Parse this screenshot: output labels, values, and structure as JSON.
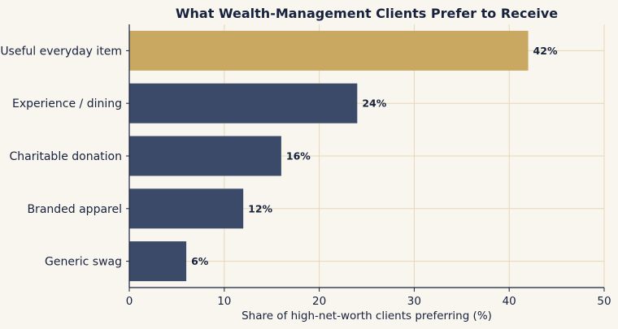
{
  "chart_data": {
    "type": "bar",
    "orientation": "horizontal",
    "title": "What Wealth-Management Clients Prefer to Receive",
    "xlabel": "Share of high-net-worth clients preferring (%)",
    "ylabel": "",
    "categories": [
      "Useful everyday item",
      "Experience / dining",
      "Charitable donation",
      "Branded apparel",
      "Generic swag"
    ],
    "values": [
      42,
      24,
      16,
      12,
      6
    ],
    "value_labels": [
      "42%",
      "24%",
      "16%",
      "12%",
      "6%"
    ],
    "xlim": [
      0,
      50
    ],
    "xticks": [
      0,
      10,
      20,
      30,
      40,
      50
    ],
    "grid": true,
    "highlight_index": 0,
    "colors": {
      "highlight": "#c9a862",
      "bar": "#3a4a68",
      "grid": "#e6d7b5",
      "axis": "#16213b",
      "background": "#f9f6f0"
    }
  }
}
